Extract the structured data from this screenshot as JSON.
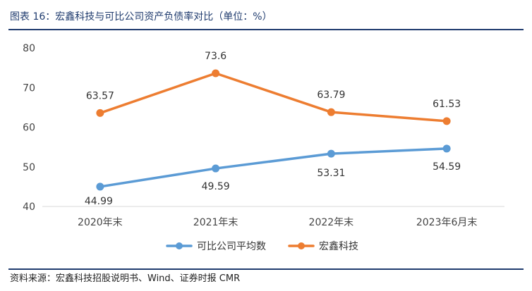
{
  "caption": "图表 16：宏鑫科技与可比公司资产负债率对比（单位：%）",
  "source": "资料来源：宏鑫科技招股说明书、Wind、证券时报 CMR",
  "chart_data": {
    "type": "line",
    "title": "宏鑫科技与可比公司资产负债率对比（单位：%）",
    "categories": [
      "2020年末",
      "2021年末",
      "2022年末",
      "2023年6月末"
    ],
    "yticks": [
      40,
      50,
      60,
      70,
      80
    ],
    "ylim": [
      40,
      80
    ],
    "grid": false,
    "legend_position": "bottom",
    "series": [
      {
        "name": "可比公司平均数",
        "values": [
          44.99,
          49.59,
          53.31,
          54.59
        ],
        "labels": [
          "44.99",
          "49.59",
          "53.31",
          "54.59"
        ],
        "color": "#5b9bd5"
      },
      {
        "name": "宏鑫科技",
        "values": [
          63.57,
          73.6,
          63.79,
          61.53
        ],
        "labels": [
          "63.57",
          "73.6",
          "63.79",
          "61.53"
        ],
        "color": "#ed7d31"
      }
    ]
  }
}
